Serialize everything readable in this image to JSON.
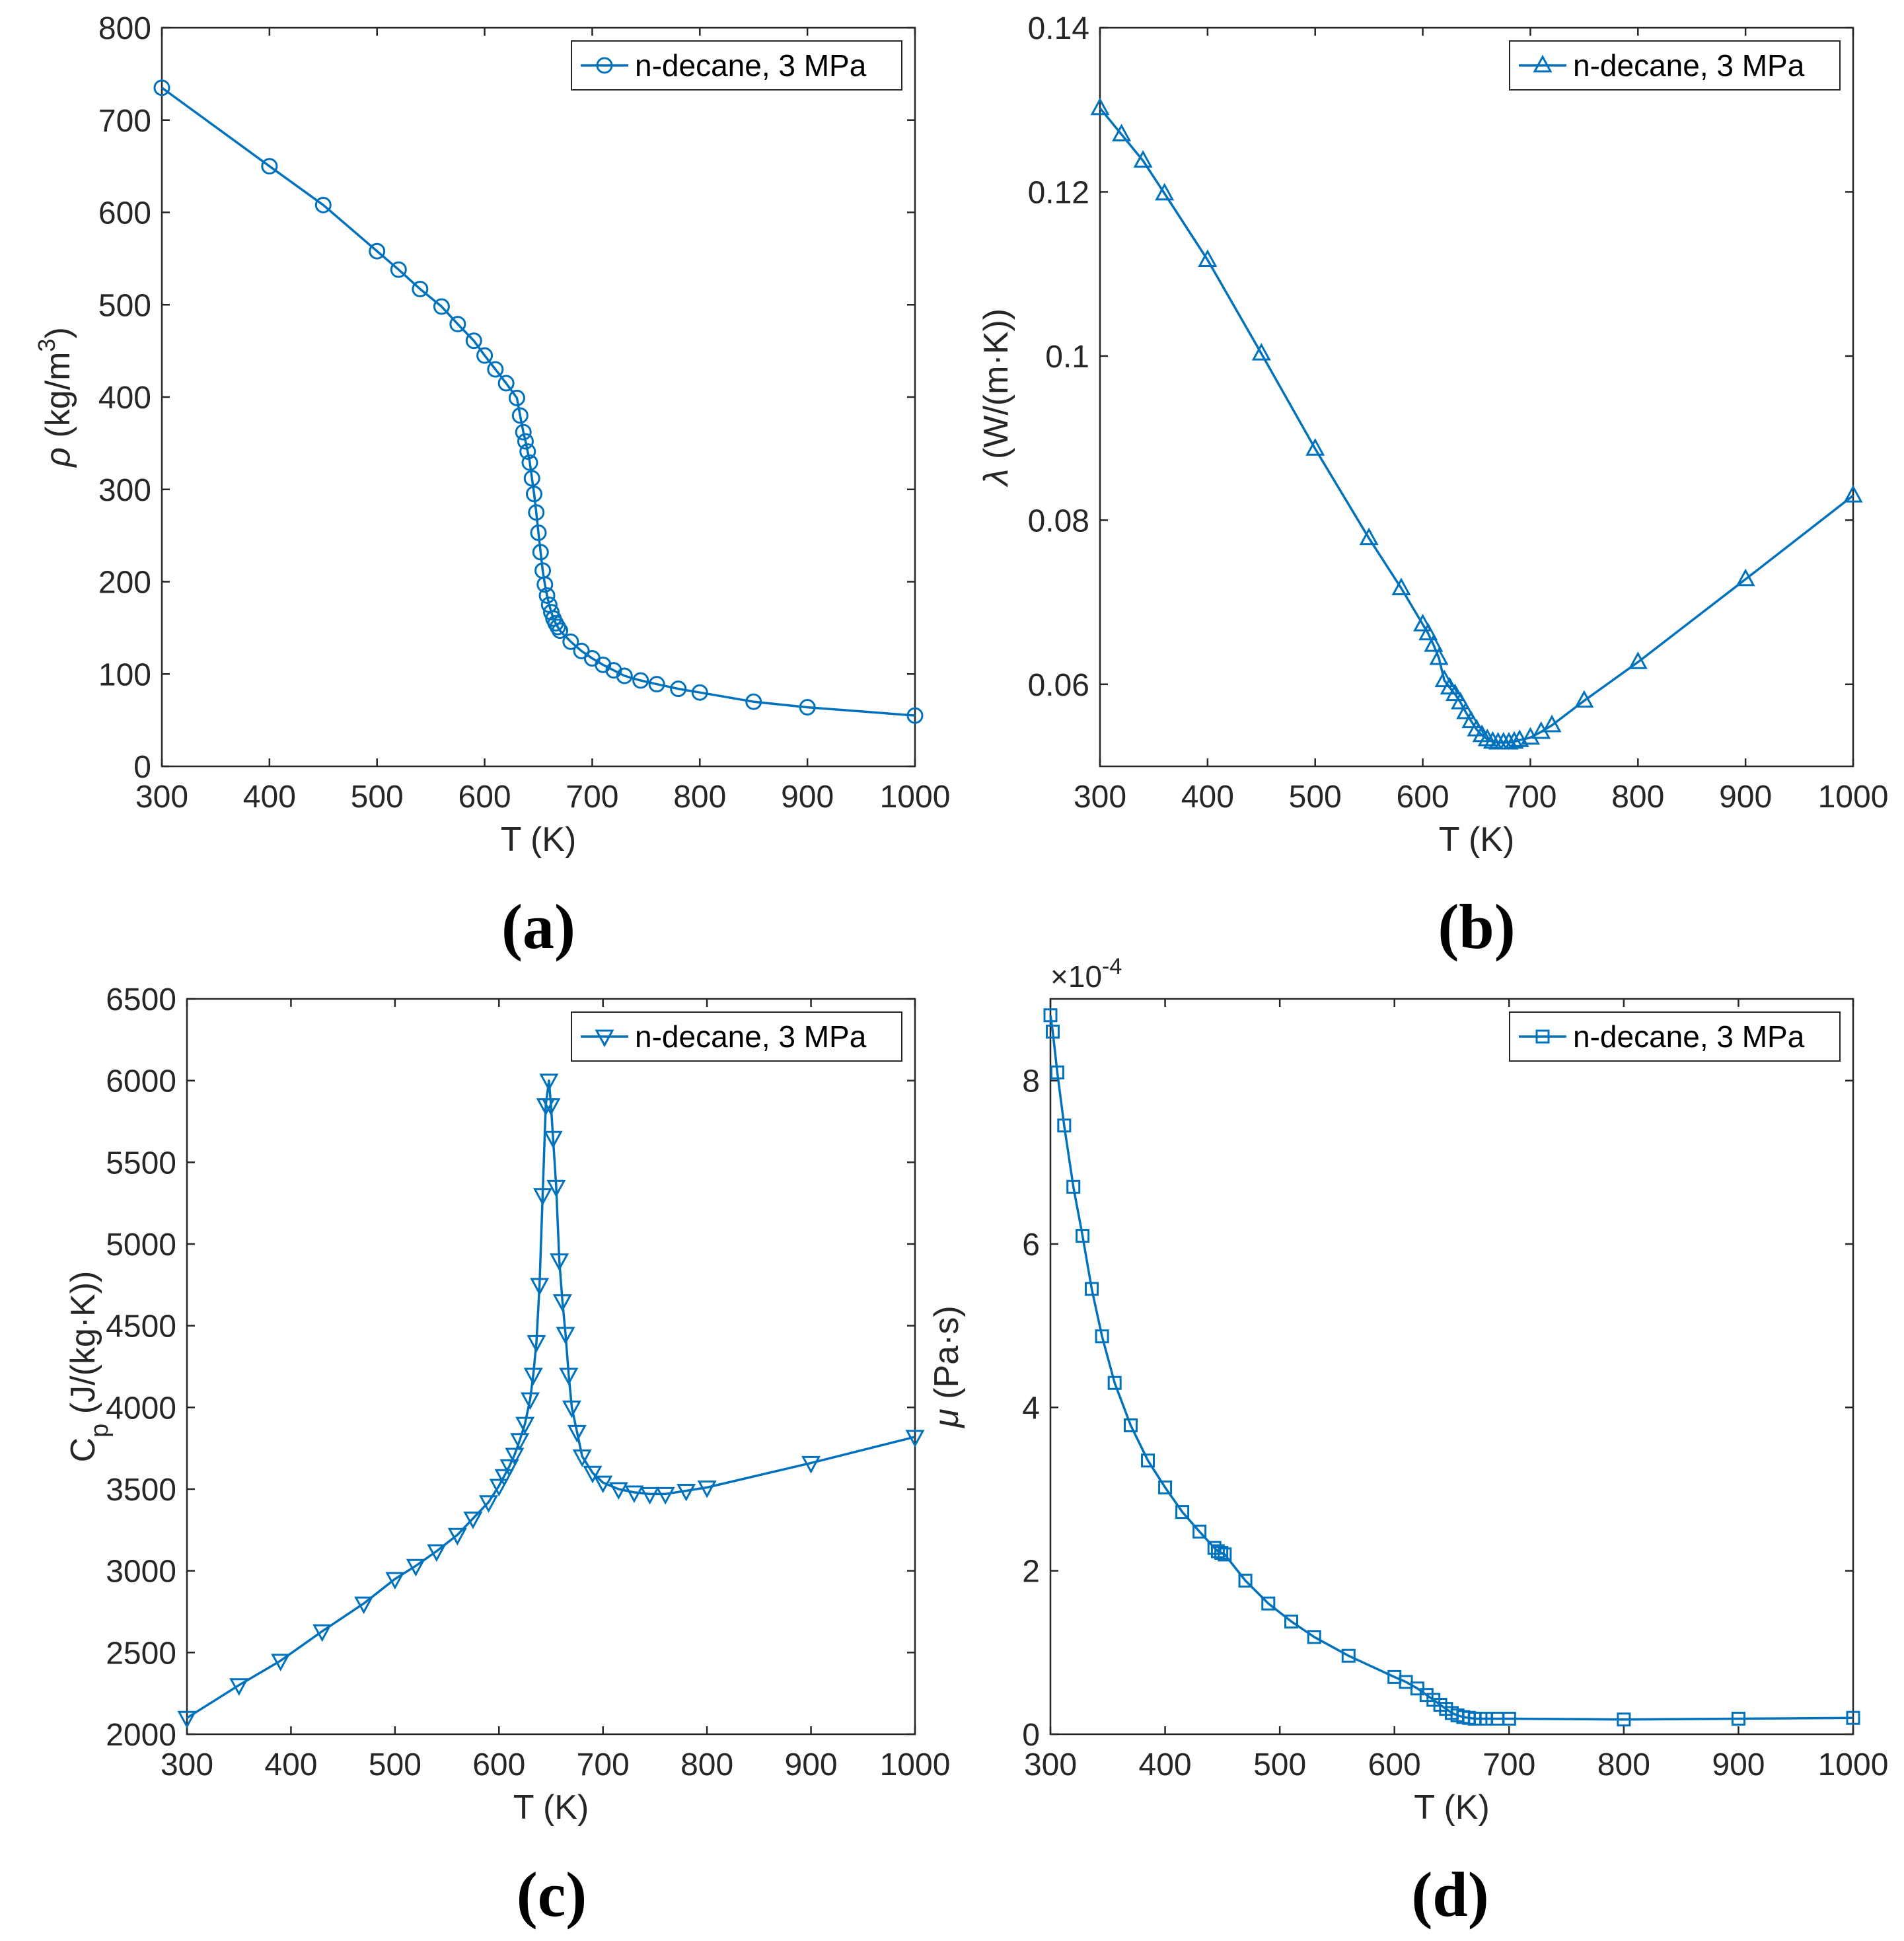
{
  "chart_data": [
    {
      "id": "a",
      "type": "line",
      "panel_label": "(a)",
      "xlabel": "T (K)",
      "ylabel": "ρ (kg/m³)",
      "ylabel_parts": {
        "symbol": "ρ",
        "text": " (kg/m",
        "sup": "3",
        "close": ")"
      },
      "xlim": [
        300,
        1000
      ],
      "ylim": [
        0,
        800
      ],
      "xticks": [
        300,
        400,
        500,
        600,
        700,
        800,
        900,
        1000
      ],
      "yticks": [
        0,
        100,
        200,
        300,
        400,
        500,
        600,
        700,
        800
      ],
      "ytick_labels": [
        "0",
        "100",
        "200",
        "300",
        "400",
        "500",
        "600",
        "700",
        "800"
      ],
      "legend": "n-decane, 3 MPa",
      "legend_position": "top-right",
      "marker": "circle",
      "series": [
        {
          "name": "n-decane, 3 MPa",
          "x": [
            300,
            400,
            450,
            500,
            520,
            540,
            560,
            575,
            590,
            600,
            610,
            620,
            630,
            633,
            636,
            638,
            640,
            642,
            644,
            646,
            648,
            650,
            652,
            654,
            656,
            658,
            660,
            662,
            664,
            666,
            668,
            670,
            680,
            690,
            700,
            710,
            720,
            730,
            745,
            760,
            780,
            800,
            850,
            900,
            1000
          ],
          "y": [
            735,
            650,
            608,
            558,
            538,
            517,
            498,
            479,
            461,
            445,
            430,
            415,
            399,
            380,
            362,
            352,
            341,
            329,
            312,
            295,
            275,
            253,
            232,
            212,
            197,
            185,
            175,
            167,
            160,
            155,
            151,
            147,
            135,
            125,
            117,
            110,
            104,
            98,
            93,
            89,
            84,
            80,
            70,
            64,
            55
          ]
        }
      ]
    },
    {
      "id": "b",
      "type": "line",
      "panel_label": "(b)",
      "xlabel": "T (K)",
      "ylabel": "λ (W/(m·K))",
      "xlim": [
        300,
        1000
      ],
      "ylim": [
        0.05,
        0.14
      ],
      "xticks": [
        300,
        400,
        500,
        600,
        700,
        800,
        900,
        1000
      ],
      "yticks": [
        0.06,
        0.08,
        0.1,
        0.12,
        0.14
      ],
      "ytick_labels": [
        "0.06",
        "0.08",
        "0.1",
        "0.12",
        "0.14"
      ],
      "legend": "n-decane, 3 MPa",
      "legend_position": "top-right",
      "marker": "triangle-up",
      "series": [
        {
          "name": "n-decane, 3 MPa",
          "x": [
            300,
            320,
            340,
            360,
            400,
            450,
            500,
            550,
            580,
            600,
            605,
            610,
            615,
            620,
            625,
            630,
            635,
            640,
            645,
            650,
            655,
            660,
            665,
            670,
            675,
            680,
            685,
            690,
            700,
            710,
            720,
            750,
            800,
            900,
            1000
          ],
          "y": [
            0.1302,
            0.127,
            0.1238,
            0.1198,
            0.1117,
            0.1003,
            0.0887,
            0.0778,
            0.0717,
            0.0673,
            0.0662,
            0.0648,
            0.0632,
            0.0605,
            0.0596,
            0.0588,
            0.0578,
            0.0566,
            0.0555,
            0.0545,
            0.0538,
            0.0533,
            0.053,
            0.0529,
            0.0529,
            0.0529,
            0.053,
            0.0532,
            0.0535,
            0.0542,
            0.055,
            0.058,
            0.0627,
            0.0728,
            0.083
          ]
        }
      ]
    },
    {
      "id": "c",
      "type": "line",
      "panel_label": "(c)",
      "xlabel": "T (K)",
      "ylabel": "Cp (J/(kg·K))",
      "ylabel_parts": {
        "base": "C",
        "sub": "p",
        "text": " (J/(kg·K))"
      },
      "xlim": [
        300,
        1000
      ],
      "ylim": [
        2000,
        6500
      ],
      "xticks": [
        300,
        400,
        500,
        600,
        700,
        800,
        900,
        1000
      ],
      "yticks": [
        2000,
        2500,
        3000,
        3500,
        4000,
        4500,
        5000,
        5500,
        6000,
        6500
      ],
      "ytick_labels": [
        "2000",
        "2500",
        "3000",
        "3500",
        "4000",
        "4500",
        "5000",
        "5500",
        "6000",
        "6500"
      ],
      "legend": "n-decane, 3 MPa",
      "legend_position": "top-right",
      "marker": "triangle-down",
      "series": [
        {
          "name": "n-decane, 3 MPa",
          "x": [
            300,
            350,
            390,
            430,
            470,
            500,
            520,
            540,
            560,
            575,
            590,
            600,
            605,
            610,
            615,
            620,
            625,
            630,
            633,
            636,
            639,
            642,
            645,
            648,
            650,
            652,
            655,
            658,
            661,
            664,
            667,
            670,
            675,
            680,
            690,
            700,
            715,
            730,
            745,
            760,
            780,
            800,
            900,
            1000
          ],
          "y": [
            2100,
            2300,
            2450,
            2630,
            2800,
            2950,
            3030,
            3120,
            3220,
            3320,
            3420,
            3520,
            3580,
            3640,
            3710,
            3800,
            3900,
            4050,
            4200,
            4400,
            4750,
            5300,
            5850,
            6000,
            5850,
            5650,
            5350,
            4900,
            4650,
            4450,
            4200,
            4000,
            3850,
            3700,
            3600,
            3540,
            3500,
            3480,
            3470,
            3470,
            3490,
            3510,
            3660,
            3820
          ]
        }
      ]
    },
    {
      "id": "d",
      "type": "line",
      "panel_label": "(d)",
      "xlabel": "T (K)",
      "ylabel": "μ (Pa·s)",
      "xlim": [
        300,
        1000
      ],
      "ylim": [
        0,
        9
      ],
      "xticks": [
        300,
        400,
        500,
        600,
        700,
        800,
        900,
        1000
      ],
      "yticks": [
        0,
        2,
        4,
        6,
        8
      ],
      "ytick_labels": [
        "0",
        "2",
        "4",
        "6",
        "8"
      ],
      "y_multiplier": "×10",
      "y_exponent": "-4",
      "legend": "n-decane, 3 MPa",
      "legend_position": "top-right",
      "marker": "square",
      "series": [
        {
          "name": "n-decane, 3 MPa",
          "x": [
            300,
            302,
            306,
            312,
            320,
            328,
            336,
            345,
            356,
            370,
            385,
            400,
            415,
            430,
            443,
            446,
            449,
            452,
            470,
            490,
            510,
            530,
            560,
            600,
            610,
            620,
            628,
            634,
            640,
            645,
            650,
            655,
            660,
            665,
            670,
            675,
            680,
            690,
            700,
            800,
            900,
            1000
          ],
          "y": [
            8.8,
            8.6,
            8.1,
            7.45,
            6.7,
            6.1,
            5.45,
            4.87,
            4.3,
            3.78,
            3.35,
            3.02,
            2.72,
            2.48,
            2.28,
            2.24,
            2.22,
            2.2,
            1.88,
            1.6,
            1.38,
            1.19,
            0.96,
            0.7,
            0.64,
            0.56,
            0.48,
            0.42,
            0.36,
            0.31,
            0.26,
            0.23,
            0.21,
            0.2,
            0.19,
            0.19,
            0.19,
            0.19,
            0.19,
            0.18,
            0.19,
            0.2
          ]
        }
      ]
    }
  ]
}
